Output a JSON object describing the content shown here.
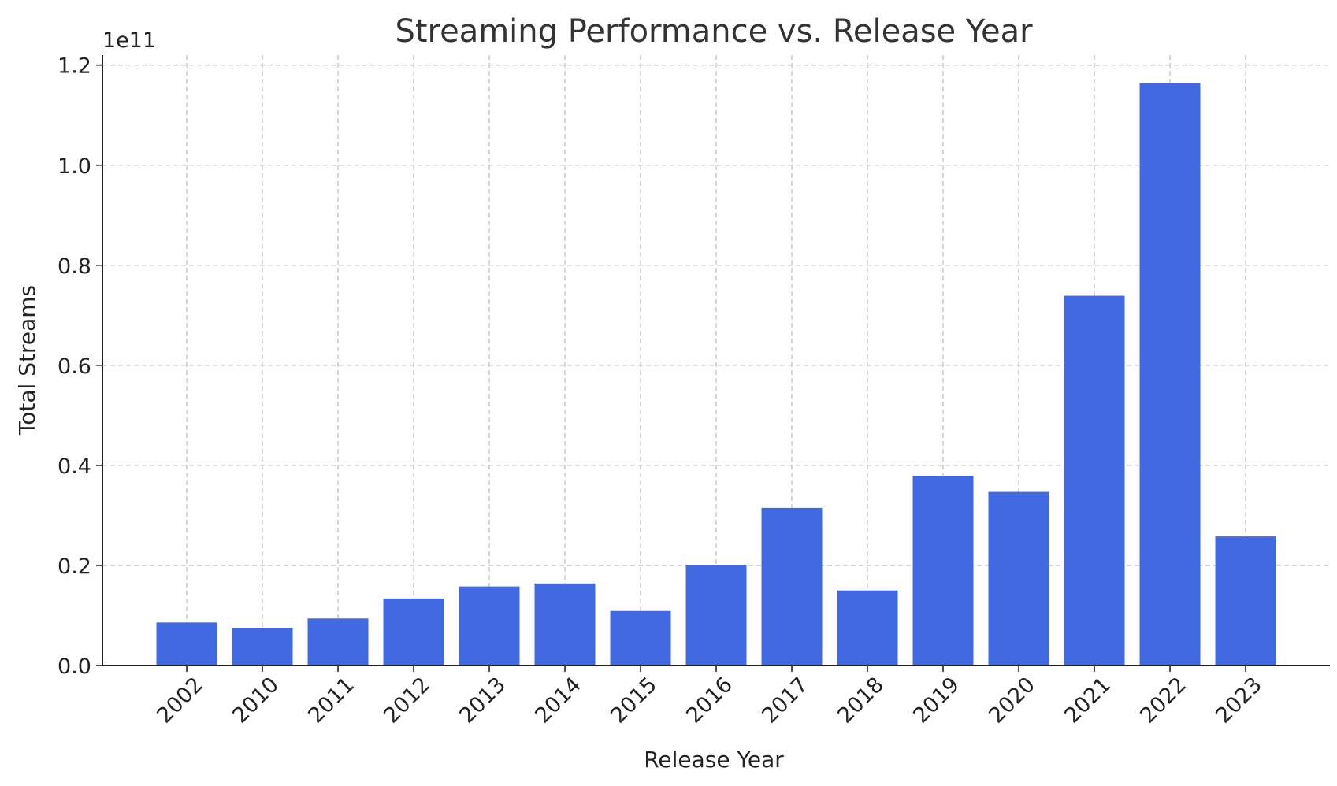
{
  "chart_data": {
    "type": "bar",
    "title": "Streaming Performance vs. Release Year",
    "xlabel": "Release Year",
    "ylabel": "Total Streams",
    "y_offset_label": "1e11",
    "categories": [
      "2002",
      "2010",
      "2011",
      "2012",
      "2013",
      "2014",
      "2015",
      "2016",
      "2017",
      "2018",
      "2019",
      "2020",
      "2021",
      "2022",
      "2023"
    ],
    "values": [
      8600000000,
      7500000000,
      9400000000,
      13400000000,
      15800000000,
      16400000000,
      10900000000,
      20100000000,
      31500000000,
      15000000000,
      37900000000,
      34700000000,
      73900000000,
      116400000000,
      25800000000
    ],
    "ylim": [
      0,
      122000000000
    ],
    "y_ticks": [
      0,
      20000000000,
      40000000000,
      60000000000,
      80000000000,
      100000000000,
      120000000000
    ],
    "y_tick_labels": [
      "0.0",
      "0.2",
      "0.4",
      "0.6",
      "0.8",
      "1.0",
      "1.2"
    ],
    "grid": true,
    "bar_color": "#4169e1"
  }
}
